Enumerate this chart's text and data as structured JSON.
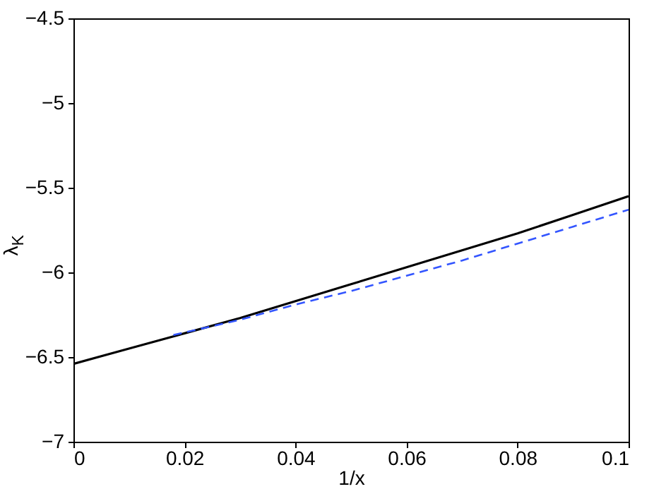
{
  "chart_data": {
    "type": "line",
    "xlabel": "1/x",
    "ylabel": "λ$_{K}$",
    "xlim": [
      0,
      0.1
    ],
    "xticks": [
      0,
      0.02,
      0.04,
      0.06,
      0.08,
      0.1
    ],
    "ylim": [
      -7,
      -4.5
    ],
    "yticks": [
      -7,
      -6.5,
      -6,
      -5.5,
      -5,
      -4.5
    ],
    "grid": false,
    "series": [
      {
        "color": "#000000",
        "line_style": "solid",
        "x": [
          0,
          0.01,
          0.02,
          0.03,
          0.04,
          0.05,
          0.06,
          0.07,
          0.08,
          0.09,
          0.1
        ],
        "values": [
          -6.54,
          -6.45,
          -6.36,
          -6.27,
          -6.17,
          -6.07,
          -5.97,
          -5.87,
          -5.77,
          -5.66,
          -5.55
        ]
      },
      {
        "color": "#3355ff",
        "line_style": "dashed",
        "x": [
          0.018,
          0.03,
          0.04,
          0.05,
          0.06,
          0.07,
          0.08,
          0.09,
          0.1
        ],
        "values": [
          -6.37,
          -6.28,
          -6.19,
          -6.11,
          -6.02,
          -5.93,
          -5.83,
          -5.73,
          -5.63
        ]
      }
    ]
  }
}
